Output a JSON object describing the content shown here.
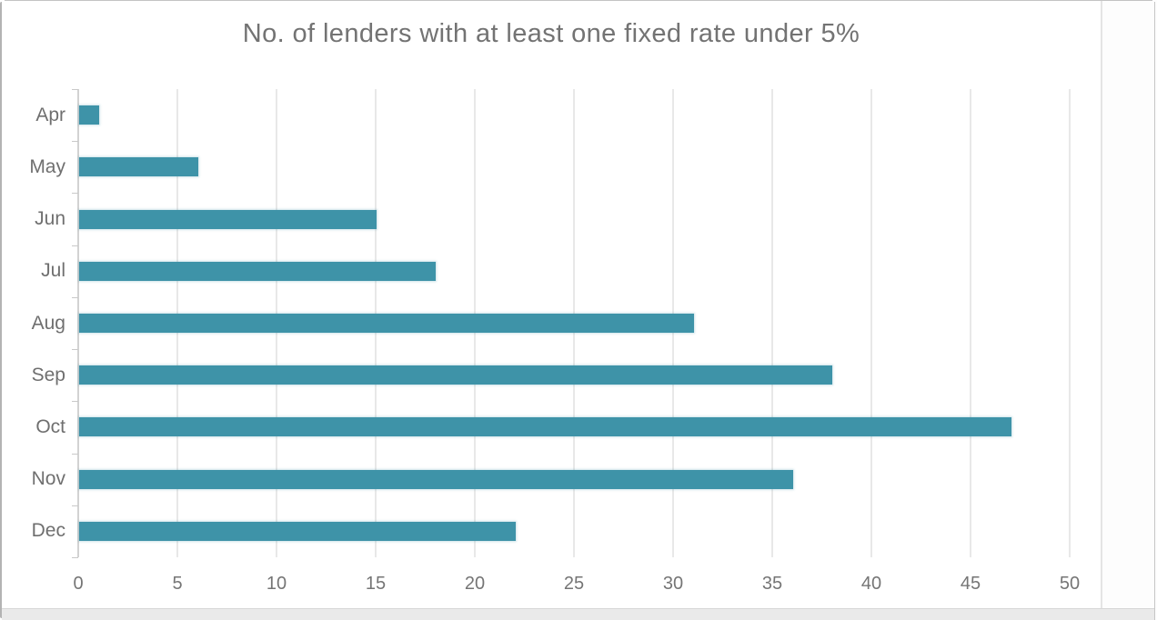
{
  "chart_data": {
    "type": "bar",
    "orientation": "horizontal",
    "title": "No. of lenders with at least one fixed rate under 5%",
    "categories": [
      "Apr",
      "May",
      "Jun",
      "Jul",
      "Aug",
      "Sep",
      "Oct",
      "Nov",
      "Dec"
    ],
    "values": [
      1,
      6,
      15,
      18,
      31,
      38,
      47,
      36,
      22
    ],
    "xlabel": "",
    "ylabel": "",
    "xlim": [
      0,
      50
    ],
    "x_ticks": [
      0,
      5,
      10,
      15,
      20,
      25,
      30,
      35,
      40,
      45,
      50
    ],
    "grid": "vertical gridlines on",
    "legend": "none",
    "colors": {
      "bar": "#3e93a8",
      "gridline": "#e8e8e8",
      "axis": "#d2d2d2",
      "tick_label": "#757575",
      "category_label": "#6f6f6f",
      "title": "#737373"
    }
  }
}
